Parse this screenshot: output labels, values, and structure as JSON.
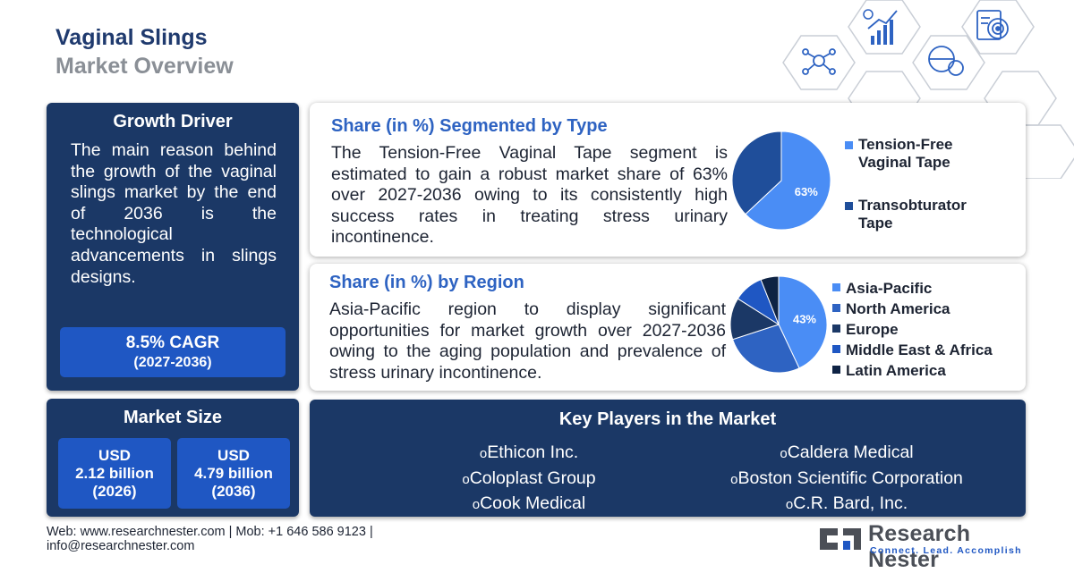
{
  "header": {
    "title_line1": "Vaginal Slings",
    "title_line2": "Market Overview"
  },
  "growth_driver": {
    "title": "Growth Driver",
    "text": "The main reason behind the growth of the vaginal slings market by the end of 2036 is the technological advancements in slings designs.",
    "cagr_value": "8.5% CAGR",
    "cagr_period": "(2027-2036)"
  },
  "market_size": {
    "title": "Market Size",
    "box1": {
      "currency": "USD",
      "amount": "2.12 billion",
      "year": "(2026)"
    },
    "box2": {
      "currency": "USD",
      "amount": "4.79 billion",
      "year": "(2036)"
    }
  },
  "type_section": {
    "title": "Share (in %)  Segmented by Type",
    "text": "The Tension-Free Vaginal Tape segment is estimated to gain a robust market share of 63% over 2027-2036 owing to its consistently high success rates in treating stress urinary incontinence."
  },
  "region_section": {
    "title": "Share (in %)  by Region",
    "text": "Asia-Pacific region to display significant opportunities for market growth over 2027-2036 owing to the aging population and prevalence of stress urinary incontinence."
  },
  "chart_data": [
    {
      "type": "pie",
      "categories": [
        "Tension-Free Vaginal Tape",
        "Transobturator Tape"
      ],
      "values": [
        63,
        37
      ],
      "data_labels": [
        "63%",
        ""
      ],
      "colors": [
        "#4a8df5",
        "#1f4e9a"
      ],
      "legend": "right"
    },
    {
      "type": "pie",
      "categories": [
        "Asia-Pacific",
        "North America",
        "Europe",
        "Middle East & Africa",
        "Latin America"
      ],
      "values": [
        43,
        27,
        14,
        10,
        6
      ],
      "data_labels": [
        "43%",
        "",
        "",
        "",
        ""
      ],
      "colors": [
        "#4a8df5",
        "#2e63c2",
        "#1b3866",
        "#1f57c3",
        "#0e2344"
      ],
      "legend": "right"
    }
  ],
  "key_players": {
    "title": "Key Players in the Market",
    "left": [
      "Ethicon Inc.",
      "Coloplast Group",
      "Cook Medical"
    ],
    "right": [
      "Caldera Medical",
      "Boston Scientific Corporation",
      "C.R. Bard, Inc."
    ],
    "bullet": "o"
  },
  "footer": {
    "line1": "Web: www.researchnester.com  | Mob: +1 646 586 9123 |",
    "line2": "info@researchnester.com"
  },
  "logo": {
    "name": "Research Nester",
    "tagline": "Connect. Lead. Accomplish"
  }
}
